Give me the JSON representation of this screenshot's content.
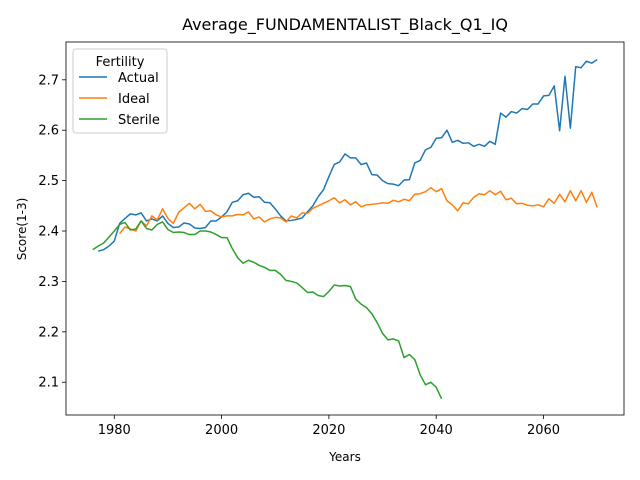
{
  "chart_data": {
    "type": "line",
    "title": "Average_FUNDAMENTALIST_Black_Q1_IQ",
    "xlabel": "Years",
    "ylabel": "Score(1-3)",
    "xlim": [
      1971,
      2075
    ],
    "ylim": [
      2.035,
      2.775
    ],
    "x_ticks": [
      1980,
      2000,
      2020,
      2040,
      2060
    ],
    "y_ticks": [
      2.1,
      2.2,
      2.3,
      2.4,
      2.5,
      2.6,
      2.7
    ],
    "x_tick_labels": [
      "1980",
      "2000",
      "2020",
      "2040",
      "2060"
    ],
    "y_tick_labels": [
      "2.1",
      "2.2",
      "2.3",
      "2.4",
      "2.5",
      "2.6",
      "2.7"
    ],
    "grid": false,
    "legend": {
      "title": "Fertility",
      "position": "top-left",
      "entries": [
        "Actual",
        "Ideal",
        "Sterile"
      ]
    },
    "series": [
      {
        "name": "Actual",
        "color": "#1f77b4",
        "points": [
          [
            1977,
            2.36
          ],
          [
            1978,
            2.363
          ],
          [
            1979,
            2.37
          ],
          [
            1980,
            2.38
          ],
          [
            1981,
            2.415
          ],
          [
            1982,
            2.425
          ],
          [
            1983,
            2.434
          ],
          [
            1984,
            2.432
          ],
          [
            1985,
            2.436
          ],
          [
            1986,
            2.42
          ],
          [
            1987,
            2.424
          ],
          [
            1988,
            2.42
          ],
          [
            1989,
            2.43
          ],
          [
            1990,
            2.415
          ],
          [
            1991,
            2.407
          ],
          [
            1992,
            2.408
          ],
          [
            1993,
            2.416
          ],
          [
            1994,
            2.414
          ],
          [
            1995,
            2.406
          ],
          [
            1996,
            2.405
          ],
          [
            1997,
            2.407
          ],
          [
            1998,
            2.42
          ],
          [
            1999,
            2.42
          ],
          [
            2000,
            2.428
          ],
          [
            2001,
            2.438
          ],
          [
            2002,
            2.457
          ],
          [
            2003,
            2.46
          ],
          [
            2004,
            2.472
          ],
          [
            2005,
            2.475
          ],
          [
            2006,
            2.467
          ],
          [
            2007,
            2.468
          ],
          [
            2008,
            2.457
          ],
          [
            2009,
            2.456
          ],
          [
            2010,
            2.444
          ],
          [
            2011,
            2.43
          ],
          [
            2012,
            2.42
          ],
          [
            2013,
            2.421
          ],
          [
            2014,
            2.423
          ],
          [
            2015,
            2.426
          ],
          [
            2016,
            2.438
          ],
          [
            2017,
            2.45
          ],
          [
            2018,
            2.468
          ],
          [
            2019,
            2.482
          ],
          [
            2020,
            2.508
          ],
          [
            2021,
            2.532
          ],
          [
            2022,
            2.537
          ],
          [
            2023,
            2.553
          ],
          [
            2024,
            2.545
          ],
          [
            2025,
            2.545
          ],
          [
            2026,
            2.532
          ],
          [
            2027,
            2.535
          ],
          [
            2028,
            2.512
          ],
          [
            2029,
            2.511
          ],
          [
            2030,
            2.5
          ],
          [
            2031,
            2.494
          ],
          [
            2032,
            2.493
          ],
          [
            2033,
            2.49
          ],
          [
            2034,
            2.501
          ],
          [
            2035,
            2.502
          ],
          [
            2036,
            2.535
          ],
          [
            2037,
            2.54
          ],
          [
            2038,
            2.561
          ],
          [
            2039,
            2.566
          ],
          [
            2040,
            2.584
          ],
          [
            2041,
            2.585
          ],
          [
            2042,
            2.6
          ],
          [
            2043,
            2.576
          ],
          [
            2044,
            2.58
          ],
          [
            2045,
            2.574
          ],
          [
            2046,
            2.575
          ],
          [
            2047,
            2.568
          ],
          [
            2048,
            2.572
          ],
          [
            2049,
            2.568
          ],
          [
            2050,
            2.578
          ],
          [
            2051,
            2.572
          ],
          [
            2052,
            2.634
          ],
          [
            2053,
            2.626
          ],
          [
            2054,
            2.637
          ],
          [
            2055,
            2.634
          ],
          [
            2056,
            2.643
          ],
          [
            2057,
            2.641
          ],
          [
            2058,
            2.652
          ],
          [
            2059,
            2.652
          ],
          [
            2060,
            2.668
          ],
          [
            2061,
            2.669
          ],
          [
            2062,
            2.688
          ],
          [
            2063,
            2.599
          ],
          [
            2064,
            2.707
          ],
          [
            2065,
            2.604
          ],
          [
            2066,
            2.726
          ],
          [
            2067,
            2.724
          ],
          [
            2068,
            2.737
          ],
          [
            2069,
            2.733
          ],
          [
            2070,
            2.74
          ]
        ]
      },
      {
        "name": "Ideal",
        "color": "#ff7f0e",
        "points": [
          [
            1981,
            2.395
          ],
          [
            1982,
            2.408
          ],
          [
            1983,
            2.404
          ],
          [
            1984,
            2.4
          ],
          [
            1985,
            2.42
          ],
          [
            1986,
            2.41
          ],
          [
            1987,
            2.43
          ],
          [
            1988,
            2.422
          ],
          [
            1989,
            2.444
          ],
          [
            1990,
            2.425
          ],
          [
            1991,
            2.415
          ],
          [
            1992,
            2.437
          ],
          [
            1993,
            2.446
          ],
          [
            1994,
            2.455
          ],
          [
            1995,
            2.444
          ],
          [
            1996,
            2.453
          ],
          [
            1997,
            2.439
          ],
          [
            1998,
            2.44
          ],
          [
            1999,
            2.432
          ],
          [
            2000,
            2.428
          ],
          [
            2001,
            2.43
          ],
          [
            2002,
            2.43
          ],
          [
            2003,
            2.433
          ],
          [
            2004,
            2.432
          ],
          [
            2005,
            2.438
          ],
          [
            2006,
            2.424
          ],
          [
            2007,
            2.428
          ],
          [
            2008,
            2.418
          ],
          [
            2009,
            2.424
          ],
          [
            2010,
            2.427
          ],
          [
            2011,
            2.426
          ],
          [
            2012,
            2.418
          ],
          [
            2013,
            2.43
          ],
          [
            2014,
            2.426
          ],
          [
            2015,
            2.436
          ],
          [
            2016,
            2.435
          ],
          [
            2017,
            2.445
          ],
          [
            2018,
            2.45
          ],
          [
            2019,
            2.455
          ],
          [
            2020,
            2.46
          ],
          [
            2021,
            2.466
          ],
          [
            2022,
            2.456
          ],
          [
            2023,
            2.462
          ],
          [
            2024,
            2.452
          ],
          [
            2025,
            2.458
          ],
          [
            2026,
            2.448
          ],
          [
            2027,
            2.452
          ],
          [
            2028,
            2.453
          ],
          [
            2029,
            2.454
          ],
          [
            2030,
            2.456
          ],
          [
            2031,
            2.455
          ],
          [
            2032,
            2.461
          ],
          [
            2033,
            2.458
          ],
          [
            2034,
            2.463
          ],
          [
            2035,
            2.46
          ],
          [
            2036,
            2.473
          ],
          [
            2037,
            2.474
          ],
          [
            2038,
            2.478
          ],
          [
            2039,
            2.486
          ],
          [
            2040,
            2.478
          ],
          [
            2041,
            2.484
          ],
          [
            2042,
            2.46
          ],
          [
            2043,
            2.452
          ],
          [
            2044,
            2.44
          ],
          [
            2045,
            2.456
          ],
          [
            2046,
            2.454
          ],
          [
            2047,
            2.467
          ],
          [
            2048,
            2.474
          ],
          [
            2049,
            2.472
          ],
          [
            2050,
            2.48
          ],
          [
            2051,
            2.472
          ],
          [
            2052,
            2.479
          ],
          [
            2053,
            2.462
          ],
          [
            2054,
            2.465
          ],
          [
            2055,
            2.454
          ],
          [
            2056,
            2.455
          ],
          [
            2057,
            2.451
          ],
          [
            2058,
            2.45
          ],
          [
            2059,
            2.452
          ],
          [
            2060,
            2.448
          ],
          [
            2061,
            2.464
          ],
          [
            2062,
            2.455
          ],
          [
            2063,
            2.473
          ],
          [
            2064,
            2.458
          ],
          [
            2065,
            2.48
          ],
          [
            2066,
            2.46
          ],
          [
            2067,
            2.48
          ],
          [
            2068,
            2.457
          ],
          [
            2069,
            2.477
          ],
          [
            2070,
            2.447
          ]
        ]
      },
      {
        "name": "Sterile",
        "color": "#2ca02c",
        "points": [
          [
            1976,
            2.363
          ],
          [
            1977,
            2.37
          ],
          [
            1978,
            2.376
          ],
          [
            1979,
            2.388
          ],
          [
            1980,
            2.4
          ],
          [
            1981,
            2.413
          ],
          [
            1982,
            2.417
          ],
          [
            1983,
            2.402
          ],
          [
            1984,
            2.404
          ],
          [
            1985,
            2.42
          ],
          [
            1986,
            2.405
          ],
          [
            1987,
            2.402
          ],
          [
            1988,
            2.413
          ],
          [
            1989,
            2.418
          ],
          [
            1990,
            2.403
          ],
          [
            1991,
            2.397
          ],
          [
            1992,
            2.398
          ],
          [
            1993,
            2.397
          ],
          [
            1994,
            2.393
          ],
          [
            1995,
            2.393
          ],
          [
            1996,
            2.4
          ],
          [
            1997,
            2.4
          ],
          [
            1998,
            2.398
          ],
          [
            1999,
            2.393
          ],
          [
            2000,
            2.387
          ],
          [
            2001,
            2.387
          ],
          [
            2002,
            2.365
          ],
          [
            2003,
            2.347
          ],
          [
            2004,
            2.336
          ],
          [
            2005,
            2.342
          ],
          [
            2006,
            2.338
          ],
          [
            2007,
            2.332
          ],
          [
            2008,
            2.328
          ],
          [
            2009,
            2.322
          ],
          [
            2010,
            2.322
          ],
          [
            2011,
            2.314
          ],
          [
            2012,
            2.302
          ],
          [
            2013,
            2.3
          ],
          [
            2014,
            2.297
          ],
          [
            2015,
            2.288
          ],
          [
            2016,
            2.278
          ],
          [
            2017,
            2.279
          ],
          [
            2018,
            2.272
          ],
          [
            2019,
            2.27
          ],
          [
            2020,
            2.28
          ],
          [
            2021,
            2.293
          ],
          [
            2022,
            2.291
          ],
          [
            2023,
            2.292
          ],
          [
            2024,
            2.29
          ],
          [
            2025,
            2.265
          ],
          [
            2026,
            2.255
          ],
          [
            2027,
            2.248
          ],
          [
            2028,
            2.236
          ],
          [
            2029,
            2.218
          ],
          [
            2030,
            2.197
          ],
          [
            2031,
            2.184
          ],
          [
            2032,
            2.186
          ],
          [
            2033,
            2.182
          ],
          [
            2034,
            2.149
          ],
          [
            2035,
            2.155
          ],
          [
            2036,
            2.145
          ],
          [
            2037,
            2.115
          ],
          [
            2038,
            2.095
          ],
          [
            2039,
            2.1
          ],
          [
            2040,
            2.09
          ],
          [
            2041,
            2.067
          ]
        ]
      }
    ]
  }
}
